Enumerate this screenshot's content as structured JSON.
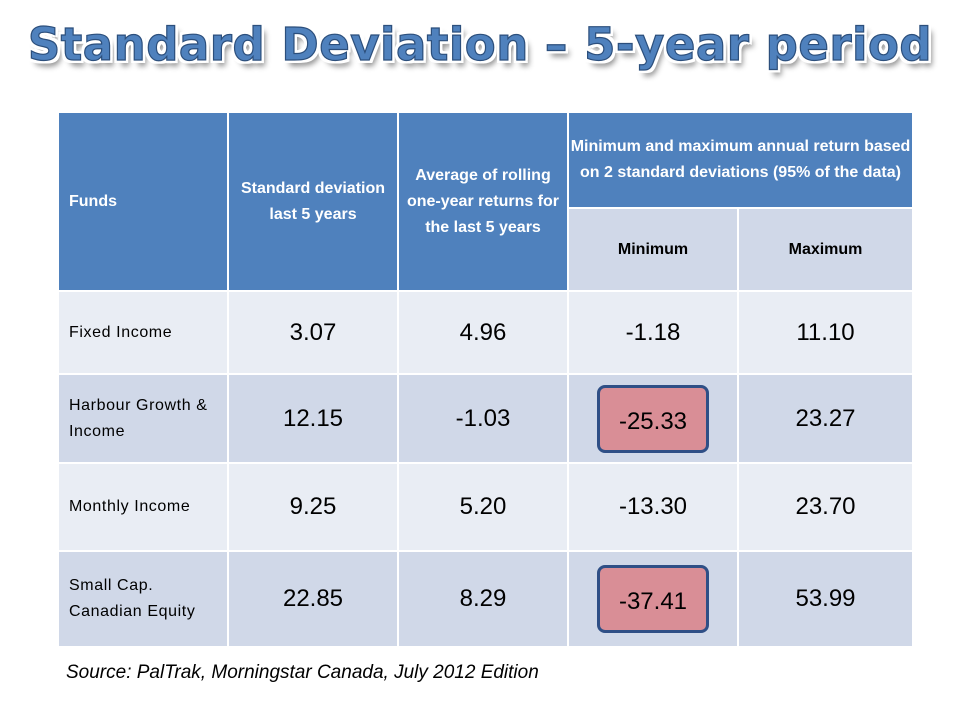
{
  "title": "Standard Deviation – 5-year period",
  "table": {
    "headers": {
      "funds": "Funds",
      "std_dev": "Standard deviation last 5 years",
      "avg_return": "Average of rolling one-year returns for the last 5 years",
      "min_max": "Minimum and maximum annual return  based on 2 standard deviations (95% of the data)",
      "minimum": "Minimum",
      "maximum": "Maximum"
    },
    "rows": [
      {
        "fund": "Fixed Income",
        "std_dev": "3.07",
        "avg": "4.96",
        "min": "-1.18",
        "max": "11.10",
        "min_highlighted": false
      },
      {
        "fund": "Harbour Growth & Income",
        "std_dev": "12.15",
        "avg": "-1.03",
        "min": "-25.33",
        "max": "23.27",
        "min_highlighted": true
      },
      {
        "fund": "Monthly Income",
        "std_dev": "9.25",
        "avg": "5.20",
        "min": "-13.30",
        "max": "23.70",
        "min_highlighted": false
      },
      {
        "fund": "Small Cap. Canadian Equity",
        "std_dev": "22.85",
        "avg": "8.29",
        "min": "-37.41",
        "max": "53.99",
        "min_highlighted": true
      }
    ]
  },
  "source": "Source: PalTrak, Morningstar Canada, July 2012 Edition",
  "colors": {
    "header_blue": "#4f81bd",
    "row_light": "#e9edf4",
    "row_dark": "#d0d8e8",
    "highlight_fill": "#d98e96",
    "highlight_border": "#2f4f86"
  }
}
